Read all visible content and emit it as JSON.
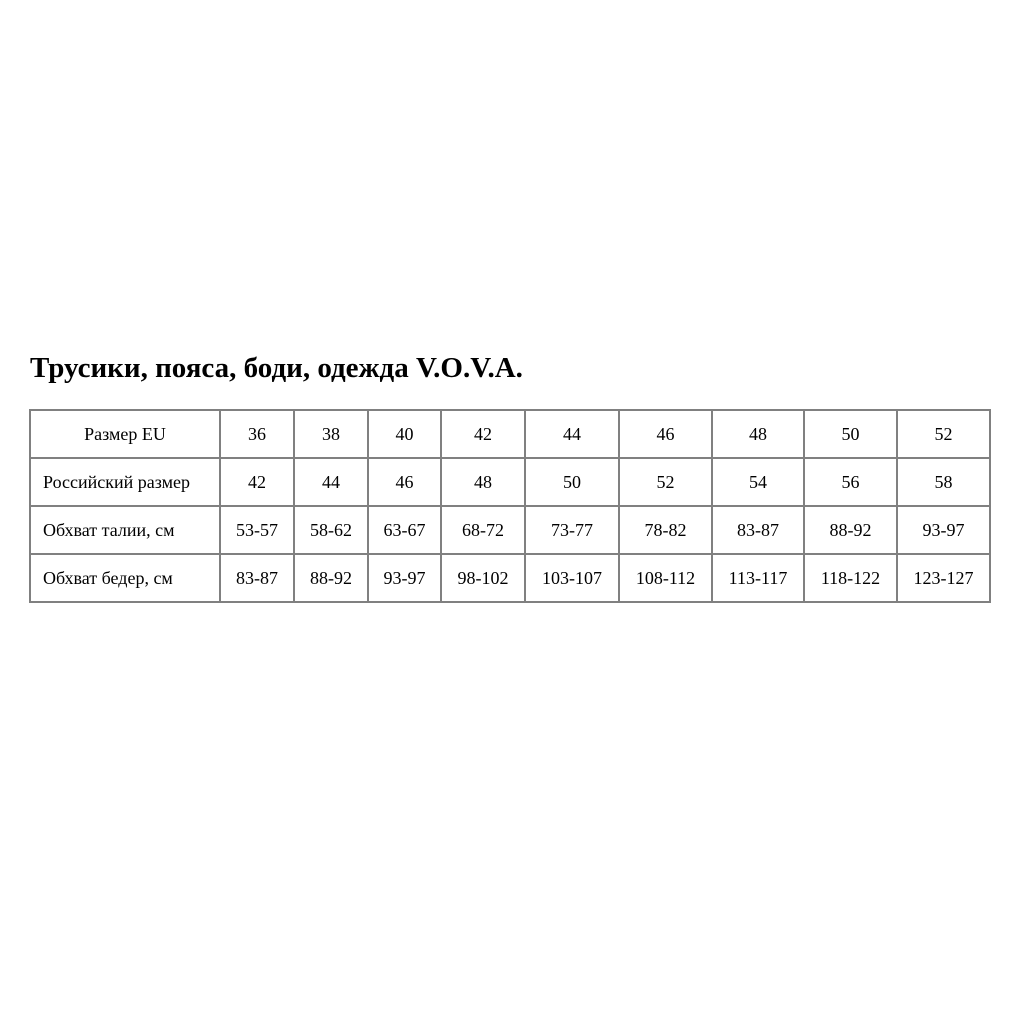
{
  "title": "Трусики, пояса, боди, одежда V.O.V.A.",
  "table": {
    "rows": [
      {
        "label": "Размер EU",
        "values": [
          "36",
          "38",
          "40",
          "42",
          "44",
          "46",
          "48",
          "50",
          "52"
        ]
      },
      {
        "label": "Российский размер",
        "values": [
          "42",
          "44",
          "46",
          "48",
          "50",
          "52",
          "54",
          "56",
          "58"
        ]
      },
      {
        "label": "Обхват талии, см",
        "values": [
          "53-57",
          "58-62",
          "63-67",
          "68-72",
          "73-77",
          "78-82",
          "83-87",
          "88-92",
          "93-97"
        ]
      },
      {
        "label": "Обхват бедер, см",
        "values": [
          "83-87",
          "88-92",
          "93-97",
          "98-102",
          "103-107",
          "108-112",
          "113-117",
          "118-122",
          "123-127"
        ]
      }
    ]
  }
}
